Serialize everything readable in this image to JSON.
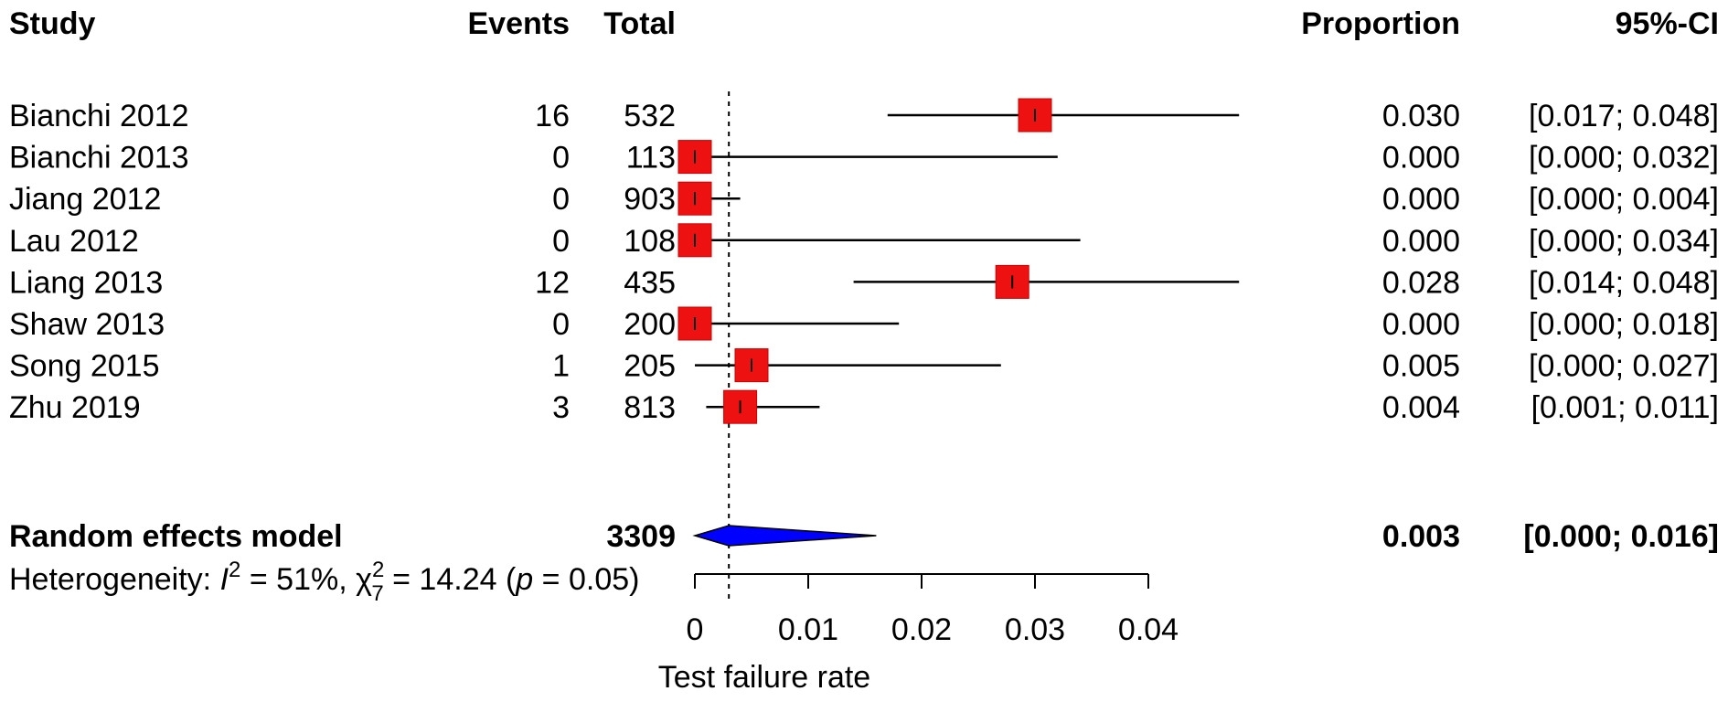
{
  "chart_data": {
    "type": "forest",
    "headers": {
      "study": "Study",
      "events": "Events",
      "total": "Total",
      "proportion": "Proportion",
      "ci": "95%-CI"
    },
    "studies": [
      {
        "name": "Bianchi 2012",
        "events": "16",
        "total": "532",
        "proportion": 0.03,
        "lower": 0.017,
        "upper": 0.048,
        "proportion_text": "0.030",
        "ci_text": "[0.017; 0.048]"
      },
      {
        "name": "Bianchi 2013",
        "events": "0",
        "total": "113",
        "proportion": 0.0,
        "lower": 0.0,
        "upper": 0.032,
        "proportion_text": "0.000",
        "ci_text": "[0.000; 0.032]"
      },
      {
        "name": "Jiang 2012",
        "events": "0",
        "total": "903",
        "proportion": 0.0,
        "lower": 0.0,
        "upper": 0.004,
        "proportion_text": "0.000",
        "ci_text": "[0.000; 0.004]"
      },
      {
        "name": "Lau 2012",
        "events": "0",
        "total": "108",
        "proportion": 0.0,
        "lower": 0.0,
        "upper": 0.034,
        "proportion_text": "0.000",
        "ci_text": "[0.000; 0.034]"
      },
      {
        "name": "Liang 2013",
        "events": "12",
        "total": "435",
        "proportion": 0.028,
        "lower": 0.014,
        "upper": 0.048,
        "proportion_text": "0.028",
        "ci_text": "[0.014; 0.048]"
      },
      {
        "name": "Shaw 2013",
        "events": "0",
        "total": "200",
        "proportion": 0.0,
        "lower": 0.0,
        "upper": 0.018,
        "proportion_text": "0.000",
        "ci_text": "[0.000; 0.018]"
      },
      {
        "name": "Song 2015",
        "events": "1",
        "total": "205",
        "proportion": 0.005,
        "lower": 0.0,
        "upper": 0.027,
        "proportion_text": "0.005",
        "ci_text": "[0.000; 0.027]"
      },
      {
        "name": "Zhu 2019",
        "events": "3",
        "total": "813",
        "proportion": 0.004,
        "lower": 0.001,
        "upper": 0.011,
        "proportion_text": "0.004",
        "ci_text": "[0.001; 0.011]"
      }
    ],
    "pooled": {
      "name": "Random effects model",
      "total": "3309",
      "proportion": 0.003,
      "lower": 0.0,
      "upper": 0.016,
      "proportion_text": "0.003",
      "ci_text": "[0.000; 0.016]"
    },
    "heterogeneity": {
      "prefix": "Heterogeneity: ",
      "i2_symbol": "I",
      "i2_value": " = 51%, ",
      "chi_symbol": "χ",
      "chi_df": "7",
      "chi_sup": "2",
      "chi_value": " = 14.24 (",
      "p_symbol": "p",
      "p_value": " = 0.05)"
    },
    "x_axis": {
      "label": "Test failure rate",
      "ticks": [
        0,
        0.01,
        0.02,
        0.03,
        0.04
      ],
      "tick_labels": [
        "0",
        "0.01",
        "0.02",
        "0.03",
        "0.04"
      ]
    },
    "reference_line": 0.003,
    "colors": {
      "square": "#ee1111",
      "diamond": "#0000ff",
      "line": "#000000"
    }
  }
}
